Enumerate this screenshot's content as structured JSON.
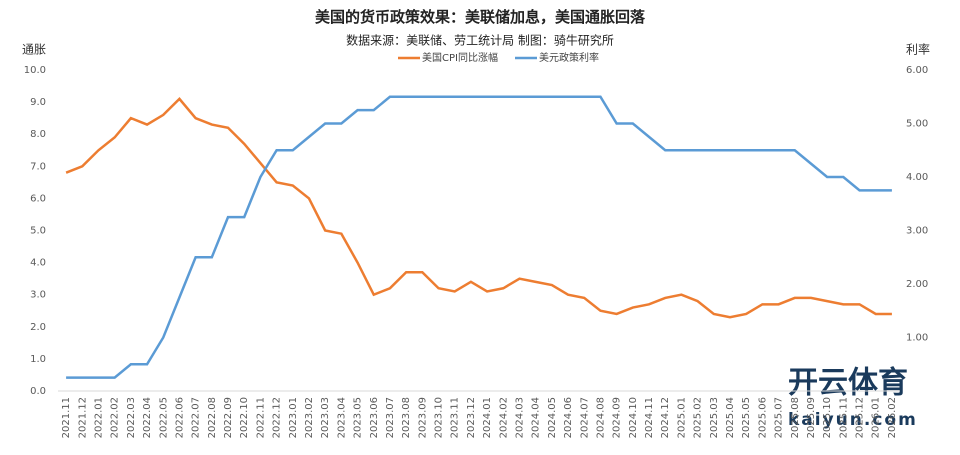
{
  "chart_data": {
    "type": "line",
    "title": "美国的货币政策效果：美联储加息，美国通胀回落",
    "subtitle": "数据来源：美联储、劳工统计局  制图：骑牛研究所",
    "y_label": "通胀",
    "y2_label": "利率",
    "watermark": "开云体育",
    "watermark_url": "kaiyun.com",
    "categories": [
      "2021.11",
      "2021.12",
      "2022.01",
      "2022.02",
      "2022.03",
      "2022.04",
      "2022.05",
      "2022.06",
      "2022.07",
      "2022.08",
      "2022.09",
      "2022.10",
      "2022.11",
      "2022.12",
      "2023.01",
      "2023.02",
      "2023.03",
      "2023.04",
      "2023.05",
      "2023.06",
      "2023.07",
      "2023.08",
      "2023.09",
      "2023.10",
      "2023.11",
      "2023.12",
      "2024.01",
      "2024.02",
      "2024.03",
      "2024.04",
      "2024.05",
      "2024.06",
      "2024.07",
      "2024.08",
      "2024.09",
      "2024.10",
      "2024.11",
      "2024.12",
      "2025.01",
      "2025.02",
      "2025.03",
      "2025.04",
      "2025.05",
      "2025.06",
      "2025.07",
      "2025.08",
      "2025.09",
      "2025.10",
      "2025.11",
      "2025.12",
      "2026.01",
      "2026.02"
    ],
    "series": [
      {
        "name": "美国CPI同比涨幅",
        "color": "#ed7d31",
        "values": [
          6.8,
          7.0,
          7.5,
          7.9,
          8.5,
          8.3,
          8.6,
          9.1,
          8.5,
          8.3,
          8.2,
          7.7,
          7.1,
          6.5,
          6.4,
          6.0,
          5.0,
          4.9,
          4.0,
          3.0,
          3.2,
          3.7,
          3.7,
          3.2,
          3.1,
          3.4,
          3.1,
          3.2,
          3.5,
          3.4,
          3.3,
          3.0,
          2.9,
          2.5,
          2.4,
          2.6,
          2.7,
          2.9,
          3.0,
          2.8,
          2.4,
          2.3,
          2.4,
          2.7,
          2.7,
          2.9,
          2.9,
          2.8,
          2.7,
          2.7,
          2.4,
          2.4
        ]
      },
      {
        "name": "美元政策利率",
        "color": "#5b9bd5",
        "axis": "y2",
        "values": [
          0.25,
          0.25,
          0.25,
          0.25,
          0.5,
          0.5,
          1.0,
          1.75,
          2.5,
          2.5,
          3.25,
          3.25,
          4.0,
          4.5,
          4.5,
          4.75,
          5.0,
          5.0,
          5.25,
          5.25,
          5.5,
          5.5,
          5.5,
          5.5,
          5.5,
          5.5,
          5.5,
          5.5,
          5.5,
          5.5,
          5.5,
          5.5,
          5.5,
          5.5,
          5.0,
          5.0,
          4.75,
          4.5,
          4.5,
          4.5,
          4.5,
          4.5,
          4.5,
          4.5,
          4.5,
          4.5,
          4.25,
          4.0,
          4.0,
          3.75,
          3.75,
          3.75
        ]
      }
    ],
    "ylim": [
      0,
      10
    ],
    "yticks": [
      {
        "value": 0,
        "label": "0.0"
      },
      {
        "value": 1,
        "label": "1.0"
      },
      {
        "value": 2,
        "label": "2.0"
      },
      {
        "value": 3,
        "label": "3.0"
      },
      {
        "value": 4,
        "label": "4.0"
      },
      {
        "value": 5,
        "label": "5.0"
      },
      {
        "value": 6,
        "label": "6.0"
      },
      {
        "value": 7,
        "label": "7.0"
      },
      {
        "value": 8,
        "label": "8.0"
      },
      {
        "value": 9,
        "label": "9.0"
      },
      {
        "value": 10,
        "label": "10.0"
      }
    ],
    "y2lim": [
      0,
      6
    ],
    "y2ticks": [
      {
        "value": 1,
        "label": "1.00"
      },
      {
        "value": 2,
        "label": "2.00"
      },
      {
        "value": 3,
        "label": "3.00"
      },
      {
        "value": 4,
        "label": "4.00"
      },
      {
        "value": 5,
        "label": "5.00"
      },
      {
        "value": 6,
        "label": "6.00"
      }
    ],
    "legend": "top",
    "grid": false
  }
}
